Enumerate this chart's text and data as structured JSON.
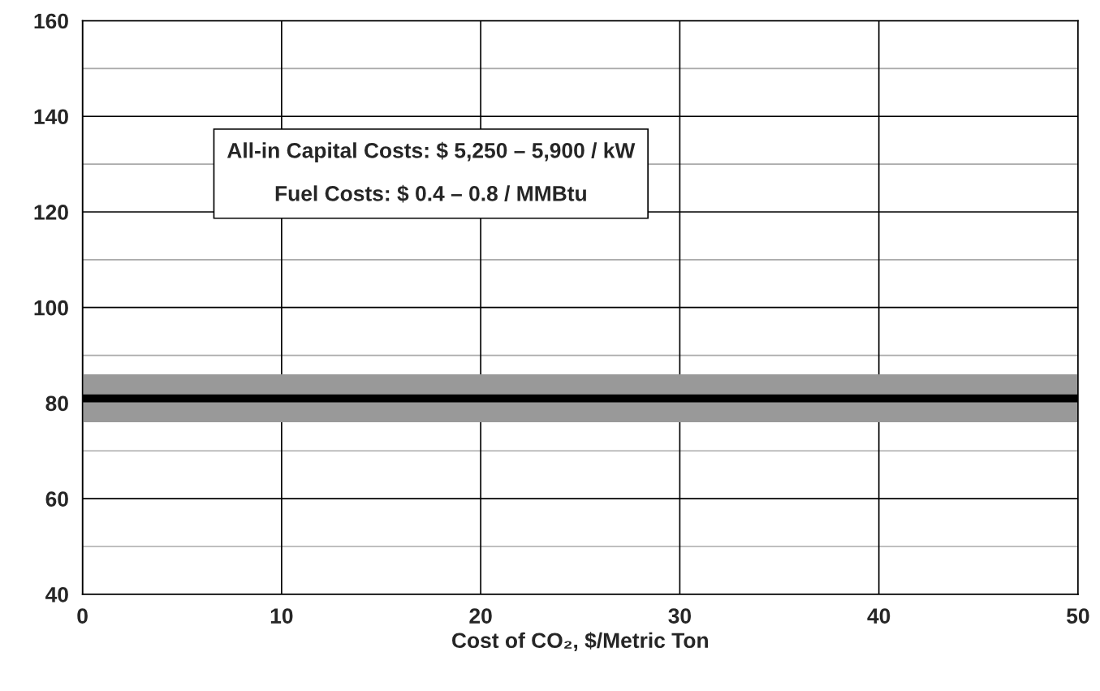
{
  "chart_data": {
    "type": "line",
    "xlabel": "Cost of CO₂, $/Metric Ton",
    "x": [
      0,
      50
    ],
    "series": [
      {
        "color": "#000000",
        "values": [
          81,
          81
        ]
      }
    ],
    "bands": [
      {
        "axis": "y",
        "from": 76,
        "to": 86,
        "color": "#999999"
      }
    ],
    "xlim": [
      0,
      50
    ],
    "xticks": [
      0,
      10,
      20,
      30,
      40,
      50
    ],
    "ylim": [
      40,
      160
    ],
    "yticks": [
      40,
      {
        "value": 50,
        "label": null
      },
      60,
      {
        "value": 70,
        "label": null
      },
      80,
      {
        "value": 90,
        "label": null
      },
      100,
      {
        "value": 110,
        "label": null
      },
      120,
      {
        "value": 130,
        "label": null
      },
      140,
      {
        "value": 150,
        "label": null
      },
      160
    ],
    "grid": true,
    "marker": "none",
    "line_style": "solid",
    "annotations": [
      "All-in Capital Costs: $ 5,250 – 5,900 / kW\n\nFuel Costs: $ 0.4 – 0.8 / MMBtu"
    ]
  }
}
